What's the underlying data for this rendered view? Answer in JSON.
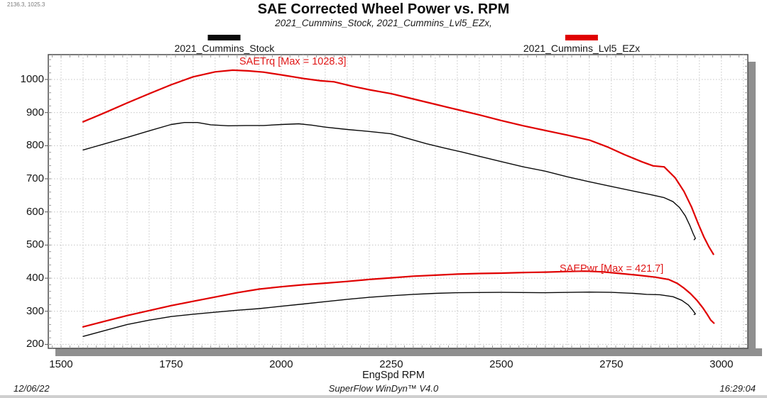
{
  "cursor_readout": "2136.3, 1025.3",
  "header": {
    "title": "SAE Corrected Wheel Power vs. RPM",
    "subtitle": "2021_Cummins_Stock, 2021_Cummins_Lvl5_EZx,"
  },
  "legend": [
    {
      "label": "2021_Cummins_Stock",
      "color": "#0a0a0a"
    },
    {
      "label": "2021_Cummins_Lvl5_EZx",
      "color": "#e00000"
    }
  ],
  "annotations": [
    {
      "text": "SAETrq [Max = 1028.3]",
      "color": "#e01818"
    },
    {
      "text": "SAEPwr [Max = 421.7]",
      "color": "#e01818"
    }
  ],
  "footer": {
    "date": "12/06/22",
    "app": "SuperFlow WinDyn™ V4.0",
    "time": "16:29:04"
  },
  "chart_data": {
    "type": "line",
    "title": "SAE Corrected Wheel Power vs. RPM",
    "xlabel": "EngSpd RPM",
    "ylabel": "",
    "xlim": [
      1471,
      3060
    ],
    "ylim": [
      188,
      1075
    ],
    "x_ticks": [
      1500,
      1750,
      2000,
      2250,
      2500,
      2750,
      3000
    ],
    "y_ticks": [
      200,
      300,
      400,
      500,
      600,
      700,
      800,
      900,
      1000
    ],
    "x_grid": {
      "start": 1500,
      "end": 3050,
      "step": 50
    },
    "x_minor_tick_step": 20,
    "y_minor_tick_step": 20,
    "grid_style": "dotted",
    "legend_position": "top",
    "max_labels": {
      "SAETrq": 1028.3,
      "SAEPwr": 421.7
    },
    "series": [
      {
        "id": "stock-torque",
        "name": "2021_Cummins_Stock SAETrq",
        "color": "#0a0a0a",
        "width": 1.4,
        "points": [
          [
            1550,
            787
          ],
          [
            1600,
            806
          ],
          [
            1650,
            825
          ],
          [
            1700,
            845
          ],
          [
            1750,
            864
          ],
          [
            1780,
            870
          ],
          [
            1810,
            870
          ],
          [
            1840,
            863
          ],
          [
            1880,
            860
          ],
          [
            1920,
            861
          ],
          [
            1960,
            861
          ],
          [
            2000,
            864
          ],
          [
            2040,
            866
          ],
          [
            2070,
            862
          ],
          [
            2100,
            856
          ],
          [
            2150,
            849
          ],
          [
            2200,
            843
          ],
          [
            2250,
            836
          ],
          [
            2290,
            821
          ],
          [
            2330,
            806
          ],
          [
            2370,
            793
          ],
          [
            2410,
            781
          ],
          [
            2450,
            768
          ],
          [
            2500,
            752
          ],
          [
            2550,
            736
          ],
          [
            2600,
            723
          ],
          [
            2650,
            706
          ],
          [
            2700,
            691
          ],
          [
            2750,
            677
          ],
          [
            2800,
            663
          ],
          [
            2840,
            652
          ],
          [
            2870,
            643
          ],
          [
            2890,
            631
          ],
          [
            2905,
            613
          ],
          [
            2918,
            588
          ],
          [
            2928,
            560
          ],
          [
            2936,
            534
          ],
          [
            2941,
            520
          ],
          [
            2938,
            516
          ]
        ]
      },
      {
        "id": "lvl5-torque",
        "name": "2021_Cummins_Lvl5_EZx SAETrq",
        "color": "#e00000",
        "width": 2.2,
        "points": [
          [
            1550,
            872
          ],
          [
            1600,
            900
          ],
          [
            1650,
            929
          ],
          [
            1700,
            957
          ],
          [
            1750,
            984
          ],
          [
            1800,
            1008
          ],
          [
            1850,
            1023
          ],
          [
            1890,
            1028
          ],
          [
            1925,
            1026
          ],
          [
            1960,
            1022
          ],
          [
            2000,
            1014
          ],
          [
            2050,
            1003
          ],
          [
            2090,
            996
          ],
          [
            2120,
            993
          ],
          [
            2160,
            980
          ],
          [
            2200,
            969
          ],
          [
            2250,
            957
          ],
          [
            2300,
            941
          ],
          [
            2350,
            925
          ],
          [
            2400,
            909
          ],
          [
            2450,
            893
          ],
          [
            2500,
            876
          ],
          [
            2550,
            860
          ],
          [
            2600,
            846
          ],
          [
            2650,
            832
          ],
          [
            2700,
            817
          ],
          [
            2740,
            797
          ],
          [
            2780,
            773
          ],
          [
            2820,
            751
          ],
          [
            2845,
            739
          ],
          [
            2870,
            736
          ],
          [
            2895,
            703
          ],
          [
            2915,
            662
          ],
          [
            2932,
            615
          ],
          [
            2947,
            565
          ],
          [
            2960,
            525
          ],
          [
            2972,
            494
          ],
          [
            2982,
            472
          ]
        ]
      },
      {
        "id": "stock-power",
        "name": "2021_Cummins_Stock SAEPwr",
        "color": "#0a0a0a",
        "width": 1.4,
        "points": [
          [
            1550,
            224
          ],
          [
            1600,
            242
          ],
          [
            1650,
            260
          ],
          [
            1700,
            273
          ],
          [
            1750,
            284
          ],
          [
            1800,
            291
          ],
          [
            1850,
            297
          ],
          [
            1900,
            303
          ],
          [
            1950,
            308
          ],
          [
            2000,
            315
          ],
          [
            2050,
            322
          ],
          [
            2100,
            329
          ],
          [
            2150,
            336
          ],
          [
            2200,
            342
          ],
          [
            2250,
            347
          ],
          [
            2300,
            351
          ],
          [
            2350,
            354
          ],
          [
            2400,
            356
          ],
          [
            2500,
            357
          ],
          [
            2600,
            356
          ],
          [
            2700,
            358
          ],
          [
            2750,
            357
          ],
          [
            2800,
            354
          ],
          [
            2830,
            351
          ],
          [
            2860,
            350
          ],
          [
            2890,
            344
          ],
          [
            2910,
            333
          ],
          [
            2925,
            319
          ],
          [
            2935,
            303
          ],
          [
            2941,
            292
          ],
          [
            2938,
            290
          ]
        ]
      },
      {
        "id": "lvl5-power",
        "name": "2021_Cummins_Lvl5_EZx SAEPwr",
        "color": "#e00000",
        "width": 2.2,
        "points": [
          [
            1550,
            253
          ],
          [
            1600,
            270
          ],
          [
            1650,
            287
          ],
          [
            1700,
            302
          ],
          [
            1750,
            317
          ],
          [
            1800,
            330
          ],
          [
            1850,
            343
          ],
          [
            1900,
            356
          ],
          [
            1950,
            367
          ],
          [
            2000,
            374
          ],
          [
            2050,
            380
          ],
          [
            2100,
            385
          ],
          [
            2150,
            390
          ],
          [
            2200,
            396
          ],
          [
            2250,
            401
          ],
          [
            2300,
            406
          ],
          [
            2350,
            409
          ],
          [
            2400,
            412
          ],
          [
            2450,
            414
          ],
          [
            2500,
            415
          ],
          [
            2550,
            417
          ],
          [
            2600,
            418
          ],
          [
            2650,
            420
          ],
          [
            2690,
            421
          ],
          [
            2730,
            419
          ],
          [
            2770,
            414
          ],
          [
            2810,
            409
          ],
          [
            2850,
            403
          ],
          [
            2880,
            396
          ],
          [
            2900,
            384
          ],
          [
            2915,
            370
          ],
          [
            2930,
            353
          ],
          [
            2945,
            332
          ],
          [
            2958,
            310
          ],
          [
            2968,
            290
          ],
          [
            2976,
            273
          ],
          [
            2983,
            264
          ]
        ]
      }
    ]
  }
}
